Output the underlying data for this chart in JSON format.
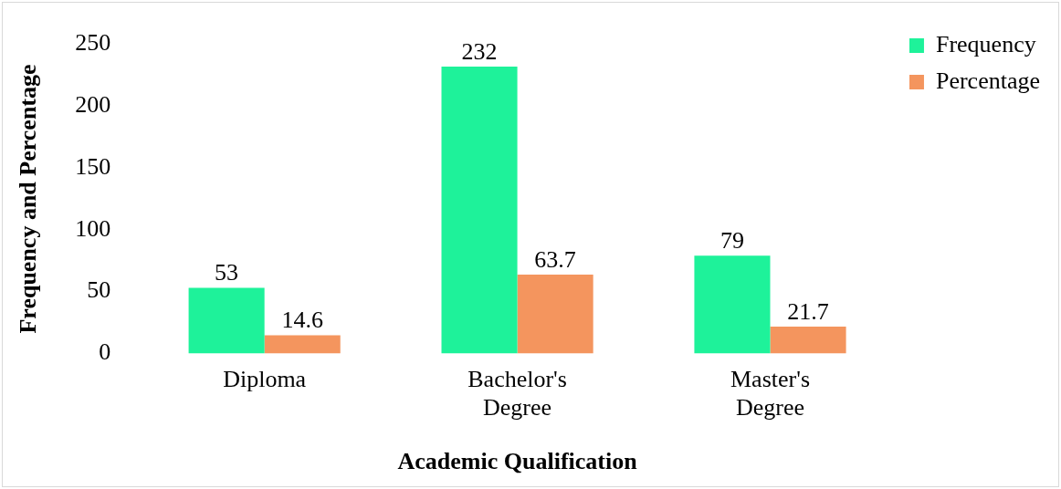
{
  "chart_data": {
    "type": "bar",
    "xlabel": "Academic Qualification",
    "ylabel": "Frequency and Percentage",
    "categories": [
      "Diploma",
      "Bachelor's Degree",
      "Master's Degree"
    ],
    "series": [
      {
        "name": "Frequency",
        "color": "#1ef29a",
        "values": [
          53,
          232,
          79
        ]
      },
      {
        "name": "Percentage",
        "color": "#f4955e",
        "values": [
          14.6,
          63.7,
          21.7
        ]
      }
    ],
    "ylim": [
      0,
      250
    ],
    "yticks": [
      0,
      50,
      100,
      150,
      200,
      250
    ],
    "grid": false,
    "legend": "top right",
    "data_labels": true
  }
}
